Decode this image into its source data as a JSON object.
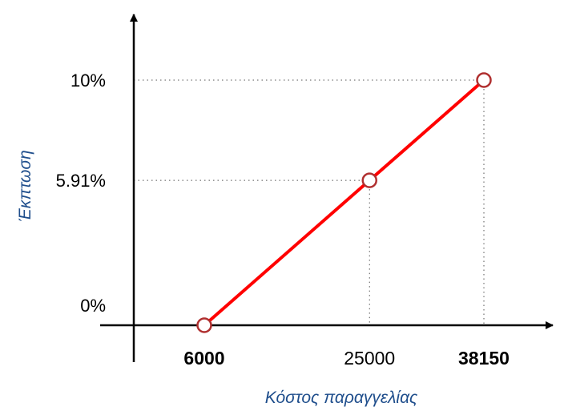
{
  "chart_data": {
    "type": "line",
    "xlabel": "Κόστος παραγγελίας",
    "ylabel": "Έκπτωση",
    "x_ticks": [
      {
        "value": 6000,
        "label": "6000",
        "bold": true
      },
      {
        "value": 25000,
        "label": "25000",
        "bold": false
      },
      {
        "value": 38150,
        "label": "38150",
        "bold": true
      }
    ],
    "y_ticks": [
      {
        "value": 0,
        "label": "0%",
        "bold": false
      },
      {
        "value": 5.91,
        "label": "5.91%",
        "bold": false
      },
      {
        "value": 10,
        "label": "10%",
        "bold": false
      }
    ],
    "series": [
      {
        "points": [
          [
            6000,
            0
          ],
          [
            25000,
            5.91
          ],
          [
            38150,
            10
          ]
        ]
      }
    ],
    "colors": {
      "line": "#ff0000",
      "marker_edge": "#b03030",
      "marker_fill": "#ffffff",
      "axis": "#000000",
      "axis_title": "#1f4e8c",
      "guides": "#555555"
    }
  }
}
